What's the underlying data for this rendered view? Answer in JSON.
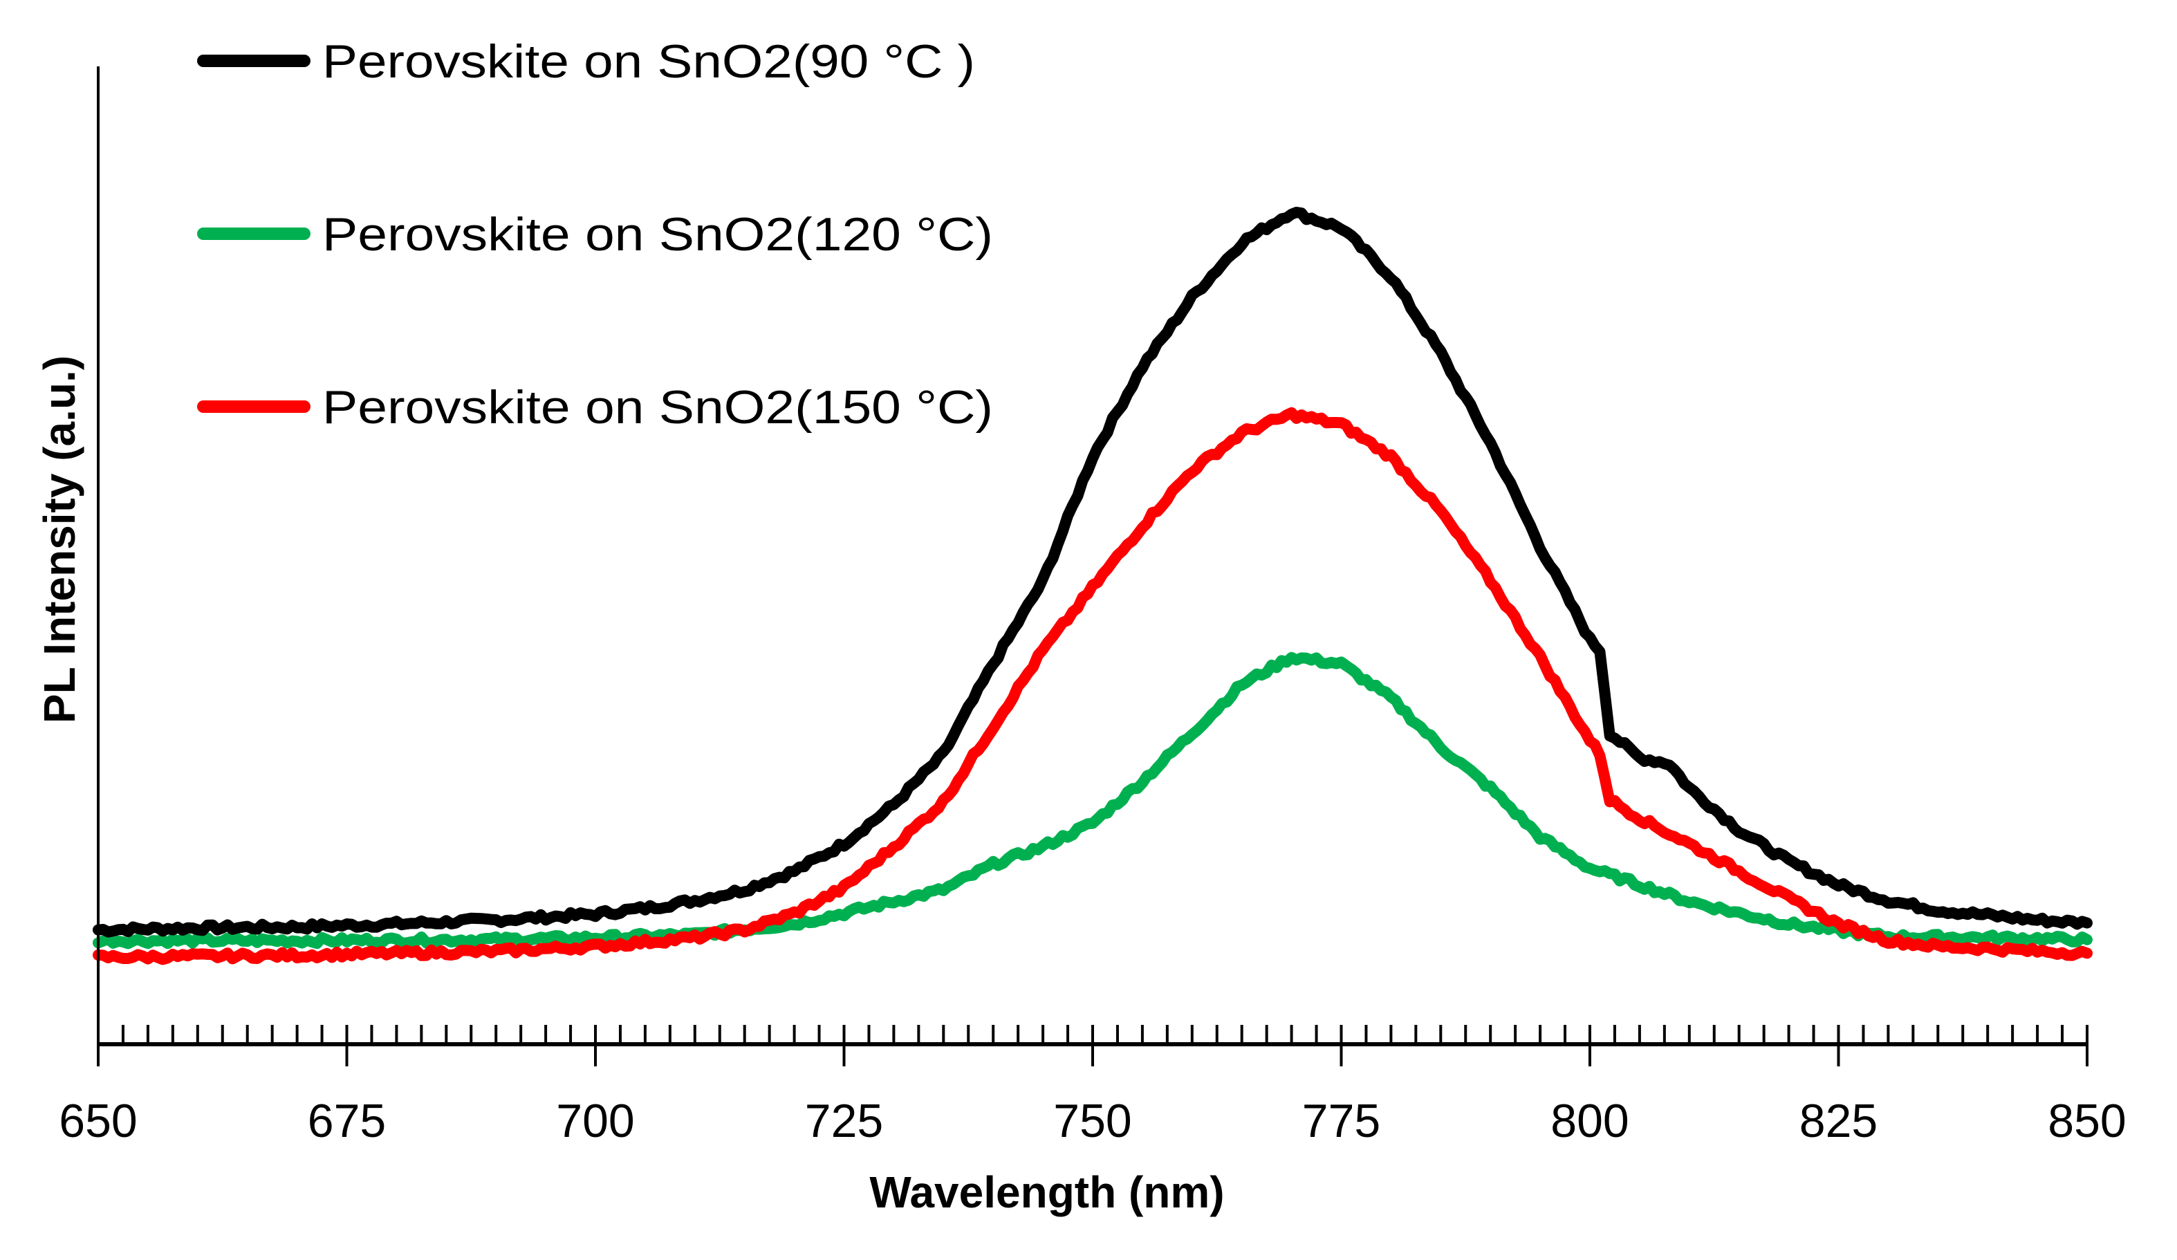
{
  "chart_data": {
    "type": "line",
    "title": "",
    "xlabel": "Wavelength (nm)",
    "ylabel": "PL Intensity (a.u.)",
    "xlim": [
      650,
      850
    ],
    "ylim": [
      0,
      100
    ],
    "x_ticks": [
      "650",
      "675",
      "700",
      "725",
      "750",
      "775",
      "800",
      "825",
      "850"
    ],
    "x_tick_values": [
      650,
      675,
      700,
      725,
      750,
      775,
      800,
      825,
      850
    ],
    "minor_tick_step": 2.5,
    "y_ticks_shown": false,
    "grid": false,
    "legend_position": "top-left",
    "series": [
      {
        "name": "Perovskite on SnO2(90 °C )",
        "color": "#000000",
        "x": [
          650,
          660,
          670,
          680,
          690,
          700,
          705,
          710,
          715,
          720,
          725,
          730,
          735,
          740,
          745,
          750,
          755,
          760,
          765,
          770,
          775,
          780,
          785,
          790,
          795,
          800,
          801,
          802,
          805,
          808,
          810,
          815,
          820,
          825,
          830,
          835,
          840,
          845,
          850
        ],
        "values": [
          11.7,
          11.9,
          12.0,
          12.3,
          12.7,
          13.3,
          13.9,
          14.7,
          15.8,
          17.7,
          20.5,
          24.5,
          29.7,
          38.9,
          47.4,
          60.1,
          69.3,
          76.4,
          82.0,
          85.1,
          83.5,
          78.5,
          70.7,
          61.5,
          50.9,
          41.4,
          40.3,
          31.8,
          29.3,
          28.7,
          26.2,
          21.9,
          18.7,
          16.3,
          14.7,
          13.7,
          13.2,
          12.7,
          12.4
        ]
      },
      {
        "name": "Perovskite on SnO2(120 °C)",
        "color": "#00B050",
        "x": [
          650,
          670,
          690,
          700,
          710,
          720,
          725,
          730,
          735,
          740,
          745,
          750,
          755,
          760,
          765,
          770,
          775,
          780,
          785,
          790,
          795,
          800,
          805,
          810,
          815,
          820,
          825,
          830,
          840,
          850
        ],
        "values": [
          10.6,
          10.6,
          10.7,
          10.9,
          11.2,
          12.3,
          13.4,
          14.6,
          15.8,
          18.4,
          20.2,
          22.6,
          26.9,
          31.8,
          36.8,
          39.6,
          38.9,
          35.4,
          30.4,
          26.2,
          21.2,
          18.0,
          16.3,
          14.6,
          13.4,
          12.3,
          11.6,
          11.0,
          10.9,
          10.7
        ]
      },
      {
        "name": "Perovskite on SnO2(150 °C)",
        "color": "#FF0000",
        "x": [
          650,
          670,
          690,
          700,
          710,
          715,
          720,
          725,
          730,
          735,
          740,
          745,
          750,
          755,
          760,
          765,
          770,
          775,
          780,
          785,
          790,
          795,
          800,
          801,
          802,
          805,
          810,
          815,
          820,
          825,
          830,
          835,
          840,
          845,
          850
        ],
        "values": [
          8.9,
          9.1,
          9.5,
          10.0,
          10.9,
          11.7,
          13.4,
          16.0,
          20.2,
          24.8,
          32.5,
          40.3,
          46.7,
          53.0,
          58.7,
          62.5,
          64.4,
          63.4,
          60.1,
          54.5,
          47.4,
          39.6,
          31.1,
          29.7,
          25.0,
          23.1,
          20.5,
          17.7,
          14.9,
          12.3,
          10.6,
          10.0,
          9.8,
          9.5,
          9.3
        ]
      }
    ]
  }
}
